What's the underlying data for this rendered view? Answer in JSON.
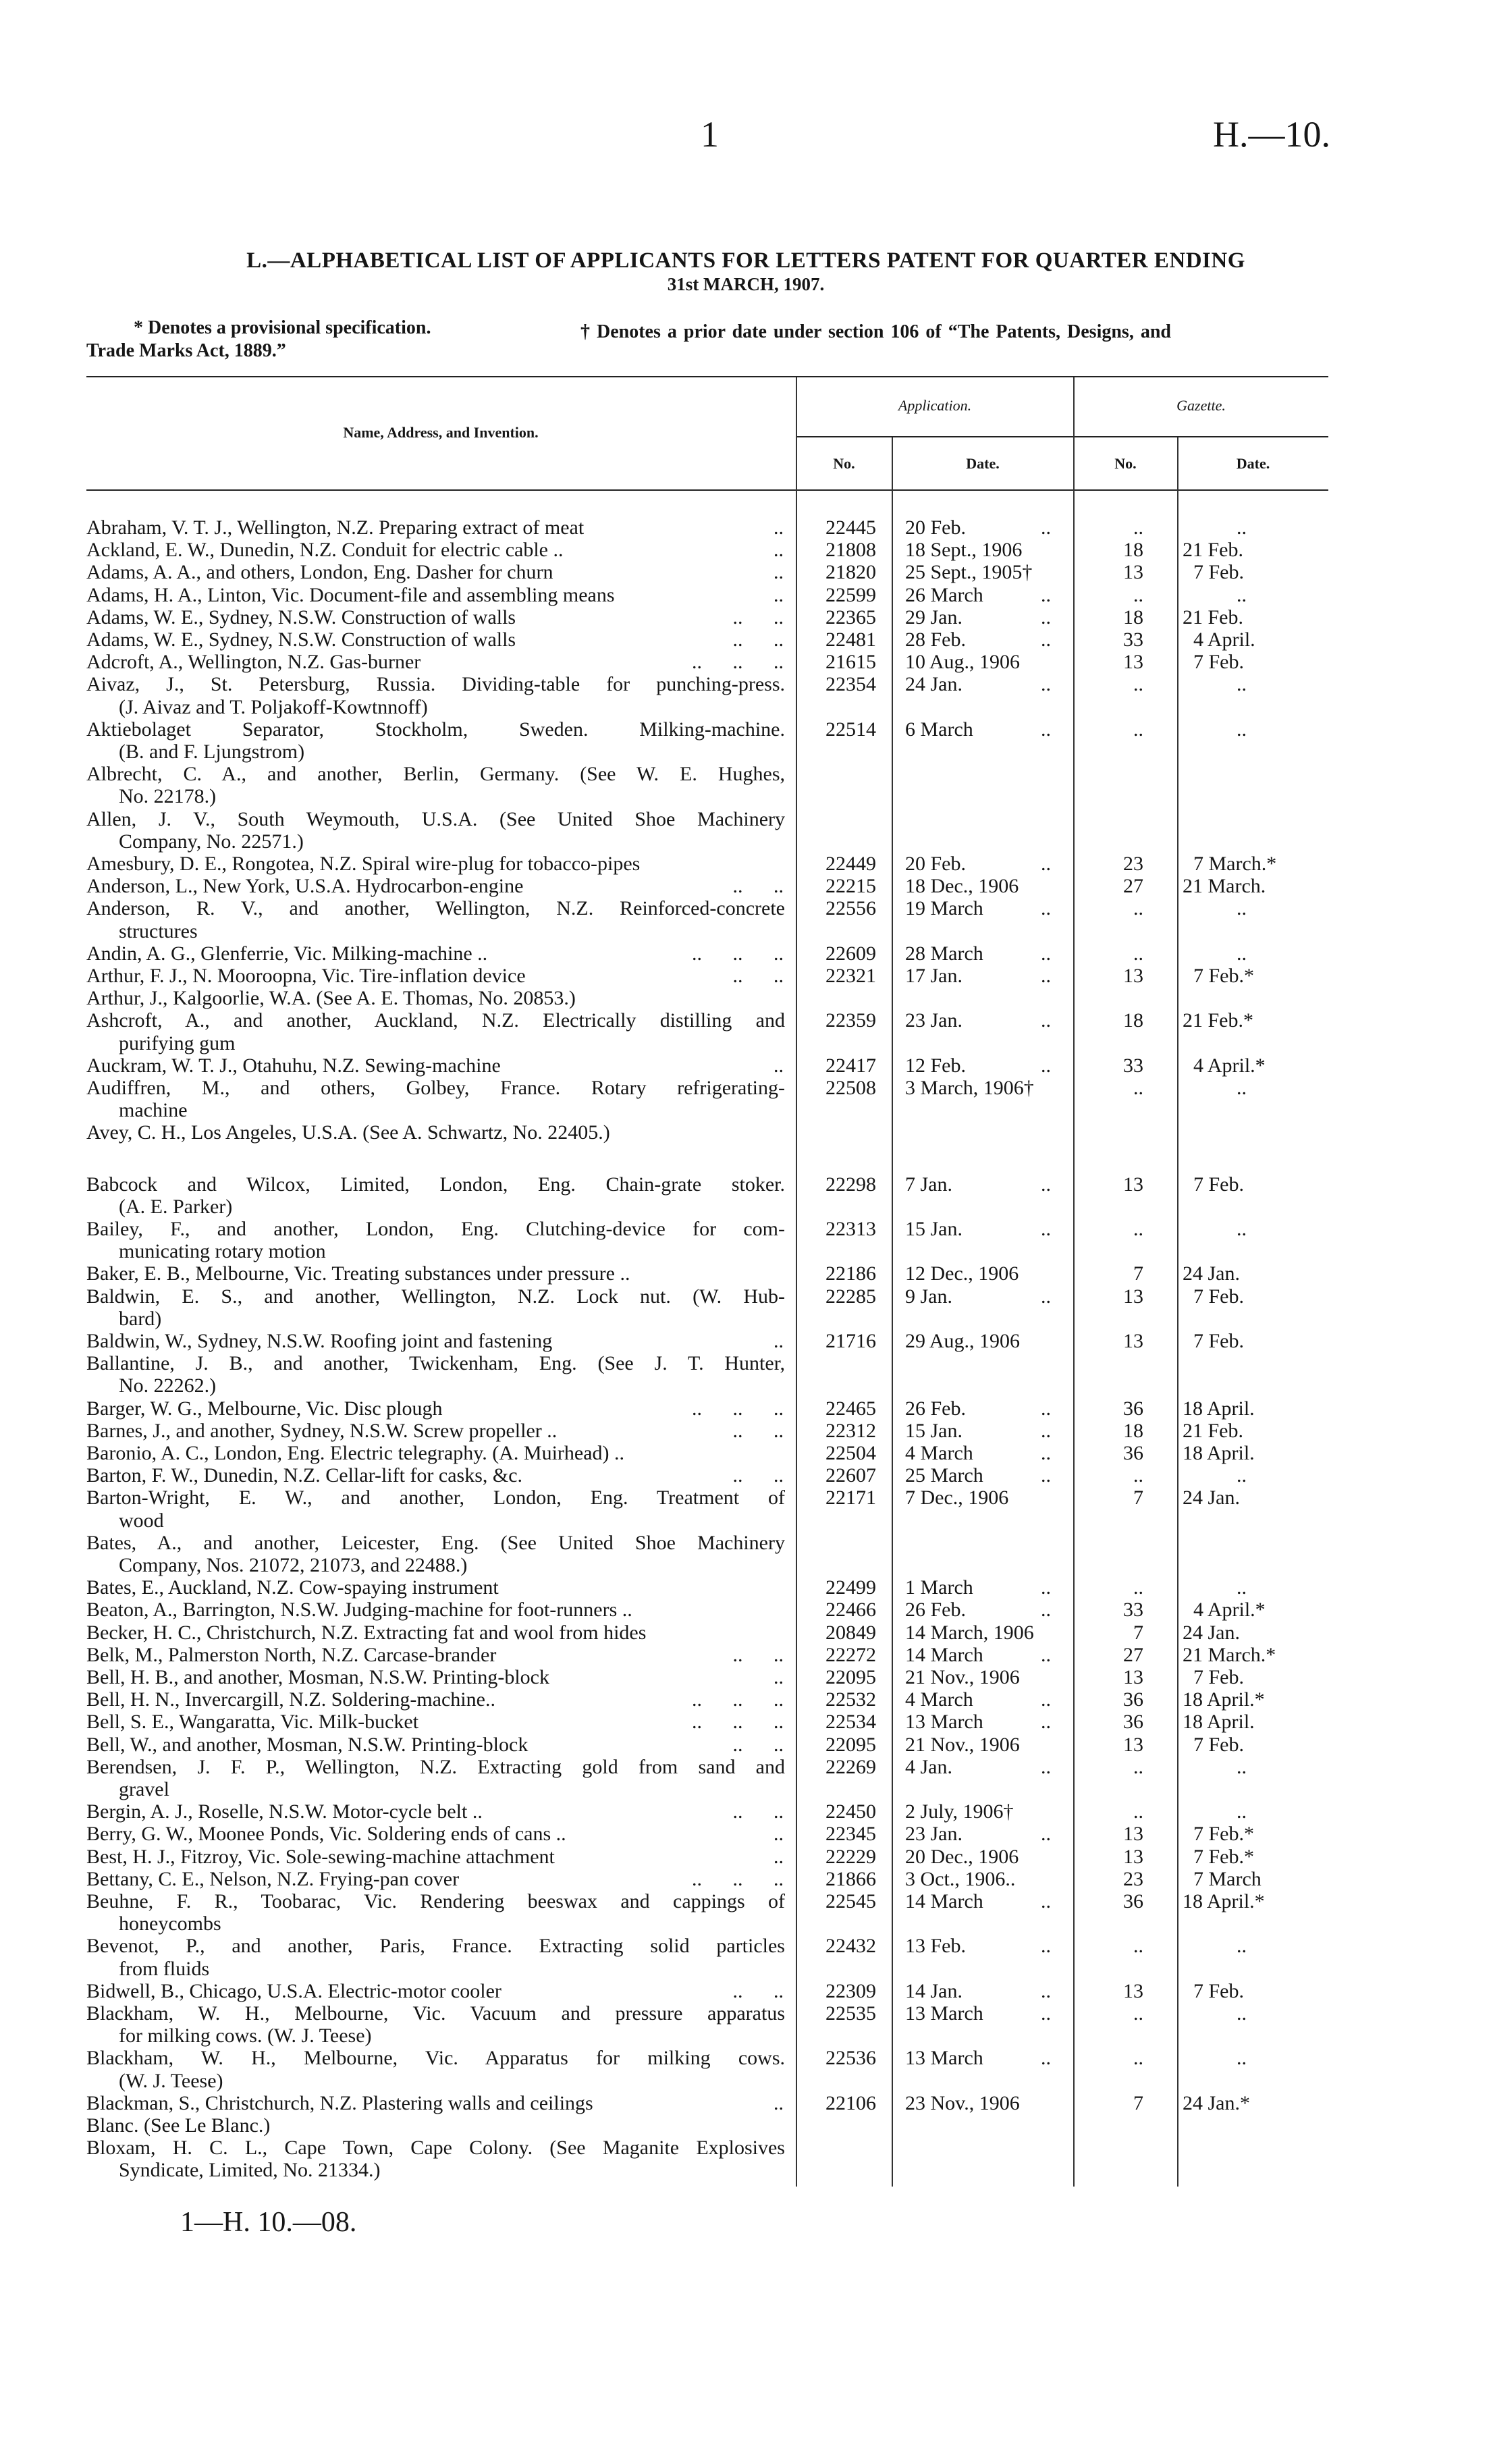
{
  "header": {
    "page_number": "1",
    "doc_code": "H.—10."
  },
  "title": "L.—ALPHABETICAL LIST OF APPLICANTS FOR LETTERS PATENT FOR QUARTER ENDING",
  "subtitle": "31st MARCH, 1907.",
  "notes": {
    "provisional": "* Denotes a provisional specification.",
    "prior_date": "† Denotes a prior date under section 106 of “The Patents, Designs, and",
    "prior_date_cont": "Trade Marks Act, 1889.”"
  },
  "columns": {
    "name": "Name, Address, and Invention.",
    "application": "Application.",
    "gazette": "Gazette.",
    "no": "No.",
    "date": "Date."
  },
  "leader": "..",
  "sections": [
    {
      "entries": [
        {
          "lines": [
            "Abraham, V. T. J., Wellington, N.Z. Preparing extract of meat"
          ],
          "dots": "..",
          "app_no": "22445",
          "app_date": "20 Feb.",
          "gaz_no": "..",
          "gaz_date": ".."
        },
        {
          "lines": [
            "Ackland, E. W., Dunedin, N.Z. Conduit for electric cable .."
          ],
          "dots": "..",
          "app_no": "21808",
          "app_date": "18 Sept., 1906",
          "gaz_no": "18",
          "gaz_date": "21 Feb."
        },
        {
          "lines": [
            "Adams, A. A., and others, London, Eng. Dasher for churn"
          ],
          "dots": "..",
          "app_no": "21820",
          "app_date": "25 Sept., 1905†",
          "gaz_no": "13",
          "gaz_date": "7 Feb."
        },
        {
          "lines": [
            "Adams, H. A., Linton, Vic. Document-file and assembling means"
          ],
          "dots": "..",
          "app_no": "22599",
          "app_date": "26 March",
          "gaz_no": "..",
          "gaz_date": ".."
        },
        {
          "lines": [
            "Adams, W. E., Sydney, N.S.W. Construction of walls"
          ],
          "dots": ".. ..",
          "app_no": "22365",
          "app_date": "29 Jan.",
          "gaz_no": "18",
          "gaz_date": "21 Feb."
        },
        {
          "lines": [
            "Adams, W. E., Sydney, N.S.W. Construction of walls"
          ],
          "dots": ".. ..",
          "app_no": "22481",
          "app_date": "28 Feb.",
          "gaz_no": "33",
          "gaz_date": "4 April."
        },
        {
          "lines": [
            "Adcroft, A., Wellington, N.Z. Gas-burner"
          ],
          "dots": ".. .. ..",
          "app_no": "21615",
          "app_date": "10 Aug., 1906",
          "gaz_no": "13",
          "gaz_date": "7 Feb."
        },
        {
          "lines": [
            "Aivaz, J., St. Petersburg, Russia. Dividing-table for punching-press.",
            "(J. Aivaz and T. Poljakoff-Kowtnnoff)"
          ],
          "app_no": "22354",
          "app_date": "24 Jan.",
          "gaz_no": "..",
          "gaz_date": ".."
        },
        {
          "lines": [
            "Aktiebolaget Separator, Stockholm, Sweden. Milking-machine.",
            "(B. and F. Ljungstrom)"
          ],
          "app_no": "22514",
          "app_date": "6 March",
          "gaz_no": "..",
          "gaz_date": ".."
        },
        {
          "lines": [
            "Albrecht, C. A., and another, Berlin, Germany. (See W. E. Hughes,",
            "No. 22178.)"
          ]
        },
        {
          "lines": [
            "Allen, J. V., South Weymouth, U.S.A. (See United Shoe Machinery",
            "Company, No. 22571.)"
          ]
        },
        {
          "lines": [
            "Amesbury, D. E., Rongotea, N.Z. Spiral wire-plug for tobacco-pipes"
          ],
          "app_no": "22449",
          "app_date": "20 Feb.",
          "gaz_no": "23",
          "gaz_date": "7 March.*"
        },
        {
          "lines": [
            "Anderson, L., New York, U.S.A. Hydrocarbon-engine"
          ],
          "dots": ".. ..",
          "app_no": "22215",
          "app_date": "18 Dec., 1906",
          "gaz_no": "27",
          "gaz_date": "21 March."
        },
        {
          "lines": [
            "Anderson, R. V., and another, Wellington, N.Z. Reinforced-concrete",
            "structures"
          ],
          "app_no": "22556",
          "app_date": "19 March",
          "gaz_no": "..",
          "gaz_date": ".."
        },
        {
          "lines": [
            "Andin, A. G., Glenferrie, Vic. Milking-machine .."
          ],
          "dots": ".. .. ..",
          "app_no": "22609",
          "app_date": "28 March",
          "gaz_no": "..",
          "gaz_date": ".."
        },
        {
          "lines": [
            "Arthur, F. J., N. Mooroopna, Vic. Tire-inflation device"
          ],
          "dots": ".. ..",
          "app_no": "22321",
          "app_date": "17 Jan.",
          "gaz_no": "13",
          "gaz_date": "7 Feb.*"
        },
        {
          "lines": [
            "Arthur, J., Kalgoorlie, W.A. (See A. E. Thomas, No. 20853.)"
          ]
        },
        {
          "lines": [
            "Ashcroft, A., and another, Auckland, N.Z. Electrically distilling and",
            "purifying gum"
          ],
          "app_no": "22359",
          "app_date": "23 Jan.",
          "gaz_no": "18",
          "gaz_date": "21 Feb.*"
        },
        {
          "lines": [
            "Auckram, W. T. J., Otahuhu, N.Z. Sewing-machine"
          ],
          "dots": "..",
          "app_no": "22417",
          "app_date": "12 Feb.",
          "gaz_no": "33",
          "gaz_date": "4 April.*"
        },
        {
          "lines": [
            "Audiffren, M., and others, Golbey, France. Rotary refrigerating-",
            "machine"
          ],
          "app_no": "22508",
          "app_date": "3 March, 1906†",
          "gaz_no": "..",
          "gaz_date": ".."
        },
        {
          "lines": [
            "Avey, C. H., Los Angeles, U.S.A. (See A. Schwartz, No. 22405.)"
          ]
        }
      ]
    },
    {
      "entries": [
        {
          "lines": [
            "Babcock and Wilcox, Limited, London, Eng. Chain-grate stoker.",
            "(A. E. Parker)"
          ],
          "app_no": "22298",
          "app_date": "7 Jan.",
          "gaz_no": "13",
          "gaz_date": "7 Feb."
        },
        {
          "lines": [
            "Bailey, F., and another, London, Eng. Clutching-device for com-",
            "municating rotary motion"
          ],
          "app_no": "22313",
          "app_date": "15 Jan.",
          "gaz_no": "..",
          "gaz_date": ".."
        },
        {
          "lines": [
            "Baker, E. B., Melbourne, Vic. Treating substances under pressure .."
          ],
          "app_no": "22186",
          "app_date": "12 Dec., 1906",
          "gaz_no": "7",
          "gaz_date": "24 Jan."
        },
        {
          "lines": [
            "Baldwin, E. S., and another, Wellington, N.Z. Lock nut. (W. Hub-",
            "bard)"
          ],
          "app_no": "22285",
          "app_date": "9 Jan.",
          "gaz_no": "13",
          "gaz_date": "7 Feb."
        },
        {
          "lines": [
            "Baldwin, W., Sydney, N.S.W. Roofing joint and fastening"
          ],
          "dots": "..",
          "app_no": "21716",
          "app_date": "29 Aug., 1906",
          "gaz_no": "13",
          "gaz_date": "7 Feb."
        },
        {
          "lines": [
            "Ballantine, J. B., and another, Twickenham, Eng. (See J. T. Hunter,",
            "No. 22262.)"
          ]
        },
        {
          "lines": [
            "Barger, W. G., Melbourne, Vic. Disc plough"
          ],
          "dots": ".. .. ..",
          "app_no": "22465",
          "app_date": "26 Feb.",
          "gaz_no": "36",
          "gaz_date": "18 April."
        },
        {
          "lines": [
            "Barnes, J., and another, Sydney, N.S.W. Screw propeller .."
          ],
          "dots": ".. ..",
          "app_no": "22312",
          "app_date": "15 Jan.",
          "gaz_no": "18",
          "gaz_date": "21 Feb."
        },
        {
          "lines": [
            "Baronio, A. C., London, Eng. Electric telegraphy. (A. Muirhead) .."
          ],
          "app_no": "22504",
          "app_date": "4 March",
          "gaz_no": "36",
          "gaz_date": "18 April."
        },
        {
          "lines": [
            "Barton, F. W., Dunedin, N.Z. Cellar-lift for casks, &c."
          ],
          "dots": ".. ..",
          "app_no": "22607",
          "app_date": "25 March",
          "gaz_no": "..",
          "gaz_date": ".."
        },
        {
          "lines": [
            "Barton-Wright, E. W., and another, London, Eng. Treatment of",
            "wood"
          ],
          "app_no": "22171",
          "app_date": "7 Dec., 1906",
          "gaz_no": "7",
          "gaz_date": "24 Jan."
        },
        {
          "lines": [
            "Bates, A., and another, Leicester, Eng. (See United Shoe Machinery",
            "Company, Nos. 21072, 21073, and 22488.)"
          ]
        },
        {
          "lines": [
            "Bates, E., Auckland, N.Z. Cow-spaying instrument"
          ],
          "app_no": "22499",
          "app_date": "1 March",
          "gaz_no": "..",
          "gaz_date": ".."
        },
        {
          "lines": [
            "Beaton, A., Barrington, N.S.W. Judging-machine for foot-runners .."
          ],
          "app_no": "22466",
          "app_date": "26 Feb.",
          "gaz_no": "33",
          "gaz_date": "4 April.*"
        },
        {
          "lines": [
            "Becker, H. C., Christchurch, N.Z. Extracting fat and wool from hides"
          ],
          "app_no": "20849",
          "app_date": "14 March, 1906",
          "gaz_no": "7",
          "gaz_date": "24 Jan."
        },
        {
          "lines": [
            "Belk, M., Palmerston North, N.Z. Carcase-brander"
          ],
          "dots": ".. ..",
          "app_no": "22272",
          "app_date": "14 March",
          "gaz_no": "27",
          "gaz_date": "21 March.*"
        },
        {
          "lines": [
            "Bell, H. B., and another, Mosman, N.S.W. Printing-block"
          ],
          "dots": "..",
          "app_no": "22095",
          "app_date": "21 Nov., 1906",
          "gaz_no": "13",
          "gaz_date": "7 Feb."
        },
        {
          "lines": [
            "Bell, H. N., Invercargill, N.Z. Soldering-machine.."
          ],
          "dots": ".. .. ..",
          "app_no": "22532",
          "app_date": "4 March",
          "gaz_no": "36",
          "gaz_date": "18 April.*"
        },
        {
          "lines": [
            "Bell, S. E., Wangaratta, Vic. Milk-bucket"
          ],
          "dots": ".. .. ..",
          "app_no": "22534",
          "app_date": "13 March",
          "gaz_no": "36",
          "gaz_date": "18 April."
        },
        {
          "lines": [
            "Bell, W., and another, Mosman, N.S.W. Printing-block"
          ],
          "dots": ".. ..",
          "app_no": "22095",
          "app_date": "21 Nov., 1906",
          "gaz_no": "13",
          "gaz_date": "7 Feb."
        },
        {
          "lines": [
            "Berendsen, J. F. P., Wellington, N.Z. Extracting gold from sand and",
            "gravel"
          ],
          "app_no": "22269",
          "app_date": "4 Jan.",
          "gaz_no": "..",
          "gaz_date": ".."
        },
        {
          "lines": [
            "Bergin, A. J., Roselle, N.S.W. Motor-cycle belt .."
          ],
          "dots": ".. ..",
          "app_no": "22450",
          "app_date": "2 July, 1906†",
          "gaz_no": "..",
          "gaz_date": ".."
        },
        {
          "lines": [
            "Berry, G. W., Moonee Ponds, Vic. Soldering ends of cans .."
          ],
          "dots": "..",
          "app_no": "22345",
          "app_date": "23 Jan.",
          "gaz_no": "13",
          "gaz_date": "7 Feb.*"
        },
        {
          "lines": [
            "Best, H. J., Fitzroy, Vic. Sole-sewing-machine attachment"
          ],
          "dots": "..",
          "app_no": "22229",
          "app_date": "20 Dec., 1906",
          "gaz_no": "13",
          "gaz_date": "7 Feb.*"
        },
        {
          "lines": [
            "Bettany, C. E., Nelson, N.Z. Frying-pan cover"
          ],
          "dots": ".. .. ..",
          "app_no": "21866",
          "app_date": "3 Oct., 1906..",
          "gaz_no": "23",
          "gaz_date": "7 March"
        },
        {
          "lines": [
            "Beuhne, F. R., Toobarac, Vic. Rendering beeswax and cappings of",
            "honeycombs"
          ],
          "app_no": "22545",
          "app_date": "14 March",
          "gaz_no": "36",
          "gaz_date": "18 April.*"
        },
        {
          "lines": [
            "Bevenot, P., and another, Paris, France. Extracting solid particles",
            "from fluids"
          ],
          "app_no": "22432",
          "app_date": "13 Feb.",
          "gaz_no": "..",
          "gaz_date": ".."
        },
        {
          "lines": [
            "Bidwell, B., Chicago, U.S.A. Electric-motor cooler"
          ],
          "dots": ".. ..",
          "app_no": "22309",
          "app_date": "14 Jan.",
          "gaz_no": "13",
          "gaz_date": "7 Feb."
        },
        {
          "lines": [
            "Blackham, W. H., Melbourne, Vic. Vacuum and pressure apparatus",
            "for milking cows. (W. J. Teese)"
          ],
          "app_no": "22535",
          "app_date": "13 March",
          "gaz_no": "..",
          "gaz_date": ".."
        },
        {
          "lines": [
            "Blackham, W. H., Melbourne, Vic. Apparatus for milking cows.",
            "(W. J. Teese)"
          ],
          "app_no": "22536",
          "app_date": "13 March",
          "gaz_no": "..",
          "gaz_date": ".."
        },
        {
          "lines": [
            "Blackman, S., Christchurch, N.Z. Plastering walls and ceilings"
          ],
          "dots": "..",
          "app_no": "22106",
          "app_date": "23 Nov., 1906",
          "gaz_no": "7",
          "gaz_date": "24 Jan.*"
        },
        {
          "lines": [
            "Blanc. (See Le Blanc.)"
          ]
        },
        {
          "lines": [
            "Bloxam, H. C. L., Cape Town, Cape Colony. (See Maganite Explosives",
            "Syndicate, Limited, No. 21334.)"
          ]
        }
      ]
    }
  ],
  "footer": "1—H. 10.—08."
}
